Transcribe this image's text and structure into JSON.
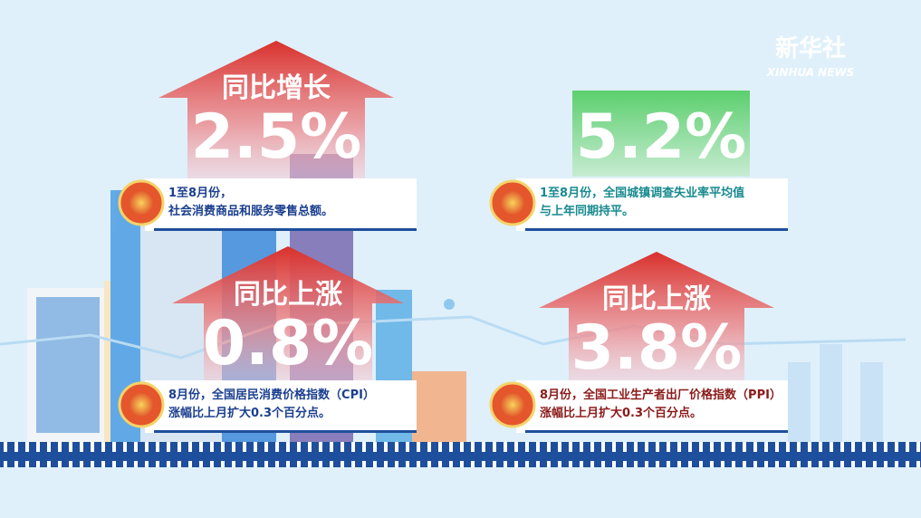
{
  "logo": {
    "name": "新华社",
    "sub": "XINHUA NEWS"
  },
  "panels": [
    {
      "heading": "同比增长",
      "value": "2.5%",
      "caption": [
        "1至8月份，",
        "社会消费商品和服务零售总额。"
      ]
    },
    {
      "value": "5.2%",
      "caption": [
        "1至8月份，全国城镇调查失业率平均值",
        "与上年同期持平。"
      ]
    },
    {
      "heading": "同比上涨",
      "value": "0.8%",
      "caption": [
        "8月份，全国居民消费价格指数（CPI）",
        "涨幅比上月扩大0.3个百分点。"
      ]
    },
    {
      "heading": "同比上涨",
      "value": "3.8%",
      "caption": [
        "8月份，全国工业生产者出厂价格指数（PPI）",
        "涨幅比上月扩大0.3个百分点。"
      ]
    }
  ]
}
